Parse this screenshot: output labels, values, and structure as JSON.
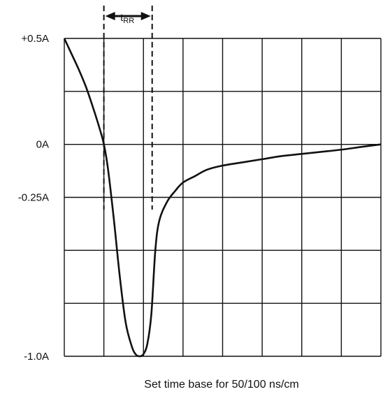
{
  "chart_data": {
    "type": "line",
    "xlabel": "Set time base for 50/100 ns/cm",
    "ylabel": "",
    "xlim": [
      0,
      8
    ],
    "ylim": [
      -1.0,
      0.5
    ],
    "x_divisions": 8,
    "y_divisions": 6,
    "grid": true,
    "y_tick_labels": [
      {
        "value": 0.5,
        "label": "+0.5A"
      },
      {
        "value": 0,
        "label": "0A"
      },
      {
        "value": -0.25,
        "label": "-0.25A"
      },
      {
        "value": -1.0,
        "label": "-1.0A"
      }
    ],
    "annotation": {
      "base": "t",
      "subscript": "RR",
      "x_start": 1.0,
      "x_end": 2.22
    },
    "series": [
      {
        "x": [
          0,
          0.15,
          0.35,
          0.55,
          0.75,
          0.9,
          1.0,
          1.1,
          1.25,
          1.4,
          1.55,
          1.7,
          1.8,
          1.9,
          2.0,
          2.1,
          2.2,
          2.3,
          2.4,
          2.6,
          2.8,
          3.0,
          3.3,
          3.6,
          4.0,
          4.5,
          5.0,
          5.5,
          6.0,
          6.5,
          7.0,
          7.5,
          8.0
        ],
        "y": [
          0.5,
          0.44,
          0.36,
          0.27,
          0.16,
          0.07,
          0.0,
          -0.11,
          -0.35,
          -0.62,
          -0.84,
          -0.95,
          -0.99,
          -1.0,
          -0.99,
          -0.94,
          -0.8,
          -0.5,
          -0.36,
          -0.27,
          -0.22,
          -0.18,
          -0.15,
          -0.12,
          -0.1,
          -0.085,
          -0.07,
          -0.055,
          -0.045,
          -0.035,
          -0.025,
          -0.012,
          0.0
        ]
      }
    ]
  }
}
